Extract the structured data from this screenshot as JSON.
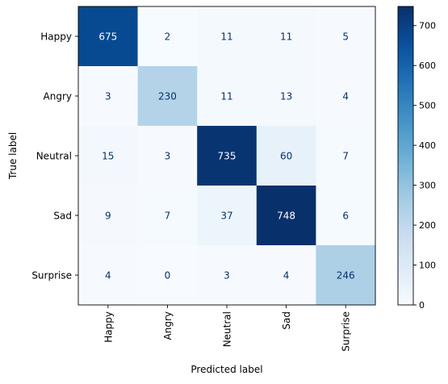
{
  "chart_data": {
    "type": "heatmap",
    "title": "",
    "xlabel": "Predicted label",
    "ylabel": "True label",
    "x_categories": [
      "Happy",
      "Angry",
      "Neutral",
      "Sad",
      "Surprise"
    ],
    "y_categories": [
      "Happy",
      "Angry",
      "Neutral",
      "Sad",
      "Surprise"
    ],
    "values": [
      [
        675,
        2,
        11,
        11,
        5
      ],
      [
        3,
        230,
        11,
        13,
        4
      ],
      [
        15,
        3,
        735,
        60,
        7
      ],
      [
        9,
        7,
        37,
        748,
        6
      ],
      [
        4,
        0,
        3,
        4,
        246
      ]
    ],
    "colormap": "Blues",
    "colorbar": {
      "range": [
        0,
        748
      ],
      "ticks": [
        0,
        100,
        200,
        300,
        400,
        500,
        600,
        700
      ]
    },
    "x_tick_rotation": "vertical",
    "grid": false,
    "text_color_light": "#ffffff",
    "text_color_dark": "#08306b"
  }
}
